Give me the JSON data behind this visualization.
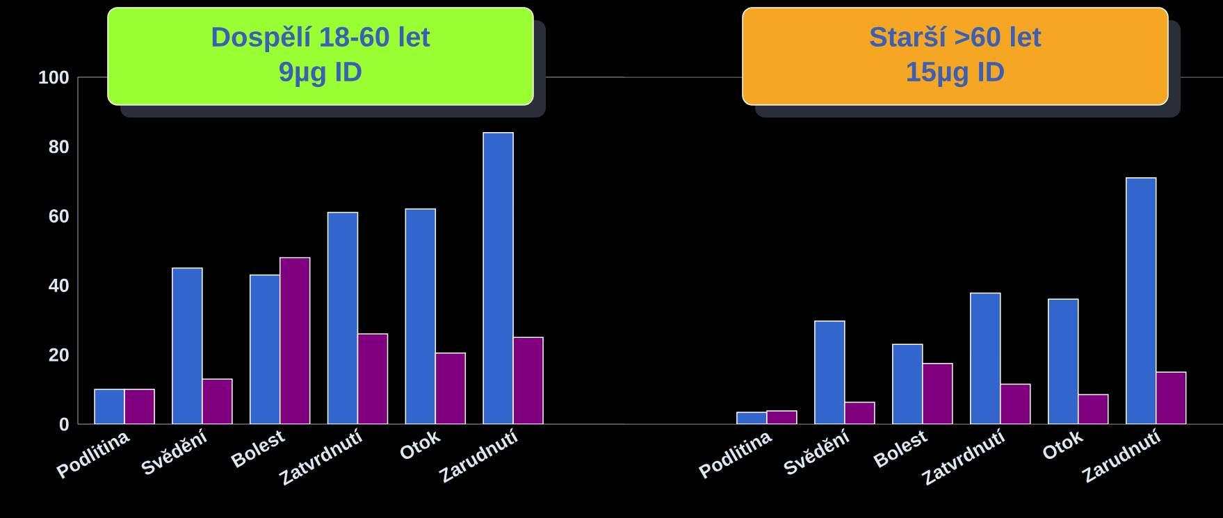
{
  "chart_data": [
    {
      "type": "bar",
      "title": "Dospělí 18-60 let",
      "subtitle": "9µg ID",
      "categories": [
        "Podlitina",
        "Svědění",
        "Bolest",
        "Zatvrdnutí",
        "Otok",
        "Zarudnutí"
      ],
      "series": [
        {
          "color": "#3366cc",
          "values": [
            10,
            45,
            43,
            61,
            62,
            84
          ]
        },
        {
          "color": "#800080",
          "values": [
            10,
            13,
            48,
            26,
            20.5,
            25
          ]
        }
      ],
      "ylim": [
        0,
        100
      ],
      "yticks": [
        0,
        20,
        40,
        60,
        80,
        100
      ]
    },
    {
      "type": "bar",
      "title": "Starší >60 let",
      "subtitle": "15µg ID",
      "categories": [
        "Podlitina",
        "Svědění",
        "Bolest",
        "Zatvrdnutí",
        "Otok",
        "Zarudnutí"
      ],
      "series": [
        {
          "color": "#3366cc",
          "values": [
            3.4,
            29.7,
            23,
            37.8,
            36,
            71
          ]
        },
        {
          "color": "#800080",
          "values": [
            3.8,
            6.3,
            17.5,
            11.5,
            8.5,
            15
          ]
        }
      ],
      "ylim": [
        0,
        100
      ],
      "yticks": [
        0,
        20,
        40,
        60,
        80,
        100
      ],
      "tick_labels": "x"
    }
  ]
}
